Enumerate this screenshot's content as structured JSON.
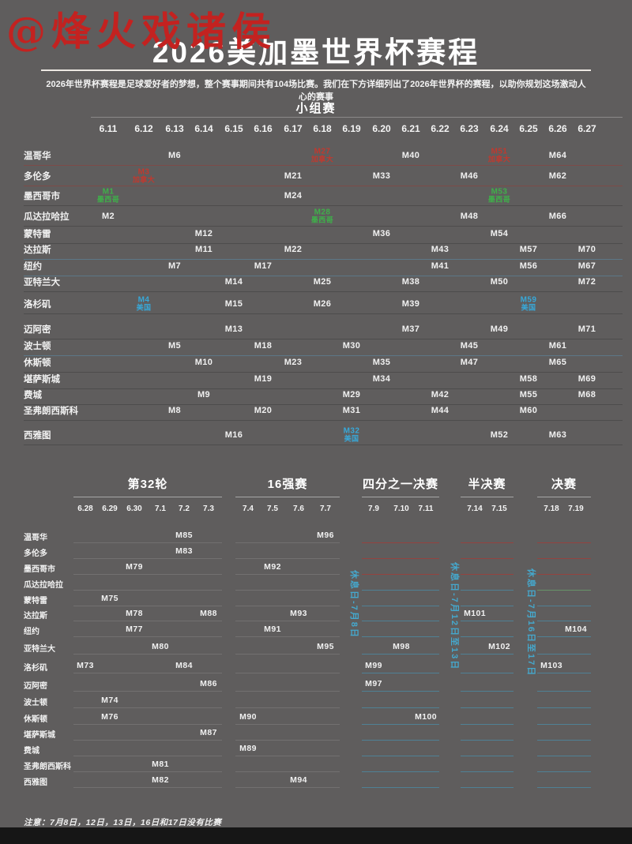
{
  "watermark": "@烽火戏诸侯",
  "title": "2026美加墨世界杯赛程",
  "subtitle": "2026年世界杯赛程是足球爱好者的梦想，整个赛事期间共有104场比赛。我们在下方详细列出了2026年世界杯的赛程，以助你规划这场激动人心的赛事",
  "footnote": "注意：7月8日，12日，13日，16日和17日没有比赛",
  "colors": {
    "background": "#5f5d5d",
    "canada_red": "#c0392f",
    "mexico_green": "#3fb04a",
    "usa_blue": "#38a8d8",
    "rest_day_cyan": "#45a8cd",
    "text_white": "#f1f1f1"
  },
  "chart_data": {
    "type": "table",
    "title": "2026美加墨世界杯赛程",
    "cities": [
      "温哥华",
      "多伦多",
      "墨西哥市",
      "瓜达拉哈拉",
      "蒙特雷",
      "达拉斯",
      "纽约",
      "亚特兰大",
      "洛杉矶",
      "迈阿密",
      "波士顿",
      "休斯顿",
      "堪萨斯城",
      "费城",
      "圣弗朗西斯科",
      "西雅图"
    ],
    "group_stage": {
      "heading": "小组赛",
      "dates": [
        "6.11",
        "6.12",
        "6.13",
        "6.14",
        "6.15",
        "6.16",
        "6.17",
        "6.18",
        "6.19",
        "6.20",
        "6.21",
        "6.22",
        "6.23",
        "6.24",
        "6.25",
        "6.26",
        "6.27"
      ],
      "matches": [
        {
          "city": "温哥华",
          "date": "6.13",
          "m": "M6"
        },
        {
          "city": "温哥华",
          "date": "6.18",
          "m": "M27",
          "country": "加拿大",
          "color": "canada_red"
        },
        {
          "city": "温哥华",
          "date": "6.21",
          "m": "M40"
        },
        {
          "city": "温哥华",
          "date": "6.24",
          "m": "M51",
          "country": "加拿大",
          "color": "canada_red"
        },
        {
          "city": "温哥华",
          "date": "6.26",
          "m": "M64"
        },
        {
          "city": "多伦多",
          "date": "6.12",
          "m": "M3",
          "country": "加拿大",
          "color": "canada_red"
        },
        {
          "city": "多伦多",
          "date": "6.17",
          "m": "M21"
        },
        {
          "city": "多伦多",
          "date": "6.20",
          "m": "M33"
        },
        {
          "city": "多伦多",
          "date": "6.23",
          "m": "M46"
        },
        {
          "city": "多伦多",
          "date": "6.26",
          "m": "M62"
        },
        {
          "city": "墨西哥市",
          "date": "6.11",
          "m": "M1",
          "country": "墨西哥",
          "color": "mexico_green"
        },
        {
          "city": "墨西哥市",
          "date": "6.17",
          "m": "M24"
        },
        {
          "city": "墨西哥市",
          "date": "6.24",
          "m": "M53",
          "country": "墨西哥",
          "color": "mexico_green"
        },
        {
          "city": "瓜达拉哈拉",
          "date": "6.11",
          "m": "M2"
        },
        {
          "city": "瓜达拉哈拉",
          "date": "6.18",
          "m": "M28",
          "country": "墨西哥",
          "color": "mexico_green"
        },
        {
          "city": "瓜达拉哈拉",
          "date": "6.23",
          "m": "M48"
        },
        {
          "city": "瓜达拉哈拉",
          "date": "6.26",
          "m": "M66"
        },
        {
          "city": "蒙特雷",
          "date": "6.14",
          "m": "M12"
        },
        {
          "city": "蒙特雷",
          "date": "6.20",
          "m": "M36"
        },
        {
          "city": "蒙特雷",
          "date": "6.24",
          "m": "M54"
        },
        {
          "city": "达拉斯",
          "date": "6.14",
          "m": "M11"
        },
        {
          "city": "达拉斯",
          "date": "6.17",
          "m": "M22"
        },
        {
          "city": "达拉斯",
          "date": "6.22",
          "m": "M43"
        },
        {
          "city": "达拉斯",
          "date": "6.25",
          "m": "M57"
        },
        {
          "city": "达拉斯",
          "date": "6.27",
          "m": "M70"
        },
        {
          "city": "纽约",
          "date": "6.13",
          "m": "M7"
        },
        {
          "city": "纽约",
          "date": "6.16",
          "m": "M17"
        },
        {
          "city": "纽约",
          "date": "6.22",
          "m": "M41"
        },
        {
          "city": "纽约",
          "date": "6.25",
          "m": "M56"
        },
        {
          "city": "纽约",
          "date": "6.27",
          "m": "M67"
        },
        {
          "city": "亚特兰大",
          "date": "6.15",
          "m": "M14"
        },
        {
          "city": "亚特兰大",
          "date": "6.18",
          "m": "M25"
        },
        {
          "city": "亚特兰大",
          "date": "6.21",
          "m": "M38"
        },
        {
          "city": "亚特兰大",
          "date": "6.24",
          "m": "M50"
        },
        {
          "city": "亚特兰大",
          "date": "6.27",
          "m": "M72"
        },
        {
          "city": "洛杉矶",
          "date": "6.12",
          "m": "M4",
          "country": "美国",
          "color": "usa_blue"
        },
        {
          "city": "洛杉矶",
          "date": "6.15",
          "m": "M15"
        },
        {
          "city": "洛杉矶",
          "date": "6.18",
          "m": "M26"
        },
        {
          "city": "洛杉矶",
          "date": "6.21",
          "m": "M39"
        },
        {
          "city": "洛杉矶",
          "date": "6.25",
          "m": "M59",
          "country": "美国",
          "color": "usa_blue"
        },
        {
          "city": "迈阿密",
          "date": "6.15",
          "m": "M13"
        },
        {
          "city": "迈阿密",
          "date": "6.21",
          "m": "M37"
        },
        {
          "city": "迈阿密",
          "date": "6.24",
          "m": "M49"
        },
        {
          "city": "迈阿密",
          "date": "6.27",
          "m": "M71"
        },
        {
          "city": "波士顿",
          "date": "6.13",
          "m": "M5"
        },
        {
          "city": "波士顿",
          "date": "6.16",
          "m": "M18"
        },
        {
          "city": "波士顿",
          "date": "6.19",
          "m": "M30"
        },
        {
          "city": "波士顿",
          "date": "6.23",
          "m": "M45"
        },
        {
          "city": "波士顿",
          "date": "6.26",
          "m": "M61"
        },
        {
          "city": "休斯顿",
          "date": "6.14",
          "m": "M10"
        },
        {
          "city": "休斯顿",
          "date": "6.17",
          "m": "M23"
        },
        {
          "city": "休斯顿",
          "date": "6.20",
          "m": "M35"
        },
        {
          "city": "休斯顿",
          "date": "6.23",
          "m": "M47"
        },
        {
          "city": "休斯顿",
          "date": "6.26",
          "m": "M65"
        },
        {
          "city": "堪萨斯城",
          "date": "6.16",
          "m": "M19"
        },
        {
          "city": "堪萨斯城",
          "date": "6.20",
          "m": "M34"
        },
        {
          "city": "堪萨斯城",
          "date": "6.25",
          "m": "M58"
        },
        {
          "city": "堪萨斯城",
          "date": "6.27",
          "m": "M69"
        },
        {
          "city": "费城",
          "date": "6.14",
          "m": "M9"
        },
        {
          "city": "费城",
          "date": "6.19",
          "m": "M29"
        },
        {
          "city": "费城",
          "date": "6.22",
          "m": "M42"
        },
        {
          "city": "费城",
          "date": "6.25",
          "m": "M55"
        },
        {
          "city": "费城",
          "date": "6.27",
          "m": "M68"
        },
        {
          "city": "圣弗朗西斯科",
          "date": "6.13",
          "m": "M8"
        },
        {
          "city": "圣弗朗西斯科",
          "date": "6.16",
          "m": "M20"
        },
        {
          "city": "圣弗朗西斯科",
          "date": "6.19",
          "m": "M31"
        },
        {
          "city": "圣弗朗西斯科",
          "date": "6.22",
          "m": "M44"
        },
        {
          "city": "圣弗朗西斯科",
          "date": "6.25",
          "m": "M60"
        },
        {
          "city": "西雅图",
          "date": "6.15",
          "m": "M16"
        },
        {
          "city": "西雅图",
          "date": "6.19",
          "m": "M32",
          "country": "美国",
          "color": "usa_blue"
        },
        {
          "city": "西雅图",
          "date": "6.24",
          "m": "M52"
        },
        {
          "city": "西雅图",
          "date": "6.26",
          "m": "M63"
        }
      ]
    },
    "knockout": {
      "phases": [
        {
          "name": "第32轮",
          "dates": [
            "6.28",
            "6.29",
            "6.30",
            "7.1",
            "7.2",
            "7.3"
          ]
        },
        {
          "name": "16强赛",
          "dates": [
            "7.4",
            "7.5",
            "7.6",
            "7.7"
          ]
        },
        {
          "name": "四分之一决赛",
          "dates": [
            "7.9",
            "7.10",
            "7.11"
          ]
        },
        {
          "name": "半决赛",
          "dates": [
            "7.14",
            "7.15"
          ]
        },
        {
          "name": "决赛",
          "dates": [
            "7.18",
            "7.19"
          ]
        }
      ],
      "rest_days": [
        "休息日-7月8日",
        "休息日-7月12日至13日",
        "休息日-7月16日至17日"
      ],
      "matches": [
        {
          "city": "温哥华",
          "date": "7.2",
          "m": "M85"
        },
        {
          "city": "温哥华",
          "date": "7.7",
          "m": "M96"
        },
        {
          "city": "多伦多",
          "date": "7.2",
          "m": "M83"
        },
        {
          "city": "墨西哥市",
          "date": "6.30",
          "m": "M79"
        },
        {
          "city": "墨西哥市",
          "date": "7.5",
          "m": "M92"
        },
        {
          "city": "蒙特雷",
          "date": "6.29",
          "m": "M75"
        },
        {
          "city": "达拉斯",
          "date": "6.30",
          "m": "M78"
        },
        {
          "city": "达拉斯",
          "date": "7.3",
          "m": "M88"
        },
        {
          "city": "达拉斯",
          "date": "7.6",
          "m": "M93"
        },
        {
          "city": "达拉斯",
          "date": "7.14",
          "m": "M101"
        },
        {
          "city": "纽约",
          "date": "6.30",
          "m": "M77"
        },
        {
          "city": "纽约",
          "date": "7.5",
          "m": "M91"
        },
        {
          "city": "纽约",
          "date": "7.19",
          "m": "M104"
        },
        {
          "city": "亚特兰大",
          "date": "7.1",
          "m": "M80"
        },
        {
          "city": "亚特兰大",
          "date": "7.7",
          "m": "M95"
        },
        {
          "city": "亚特兰大",
          "date": "7.10",
          "m": "M98"
        },
        {
          "city": "亚特兰大",
          "date": "7.15",
          "m": "M102"
        },
        {
          "city": "洛杉矶",
          "date": "6.28",
          "m": "M73"
        },
        {
          "city": "洛杉矶",
          "date": "7.2",
          "m": "M84"
        },
        {
          "city": "洛杉矶",
          "date": "7.9",
          "m": "M99"
        },
        {
          "city": "洛杉矶",
          "date": "7.18",
          "m": "M103"
        },
        {
          "city": "迈阿密",
          "date": "7.3",
          "m": "M86"
        },
        {
          "city": "迈阿密",
          "date": "7.9",
          "m": "M97"
        },
        {
          "city": "波士顿",
          "date": "6.29",
          "m": "M74"
        },
        {
          "city": "休斯顿",
          "date": "6.29",
          "m": "M76"
        },
        {
          "city": "休斯顿",
          "date": "7.4",
          "m": "M90"
        },
        {
          "city": "休斯顿",
          "date": "7.11",
          "m": "M100"
        },
        {
          "city": "堪萨斯城",
          "date": "7.3",
          "m": "M87"
        },
        {
          "city": "费城",
          "date": "7.4",
          "m": "M89"
        },
        {
          "city": "圣弗朗西斯科",
          "date": "7.1",
          "m": "M81"
        },
        {
          "city": "西雅图",
          "date": "7.1",
          "m": "M82"
        },
        {
          "city": "西雅图",
          "date": "7.6",
          "m": "M94"
        }
      ]
    }
  }
}
